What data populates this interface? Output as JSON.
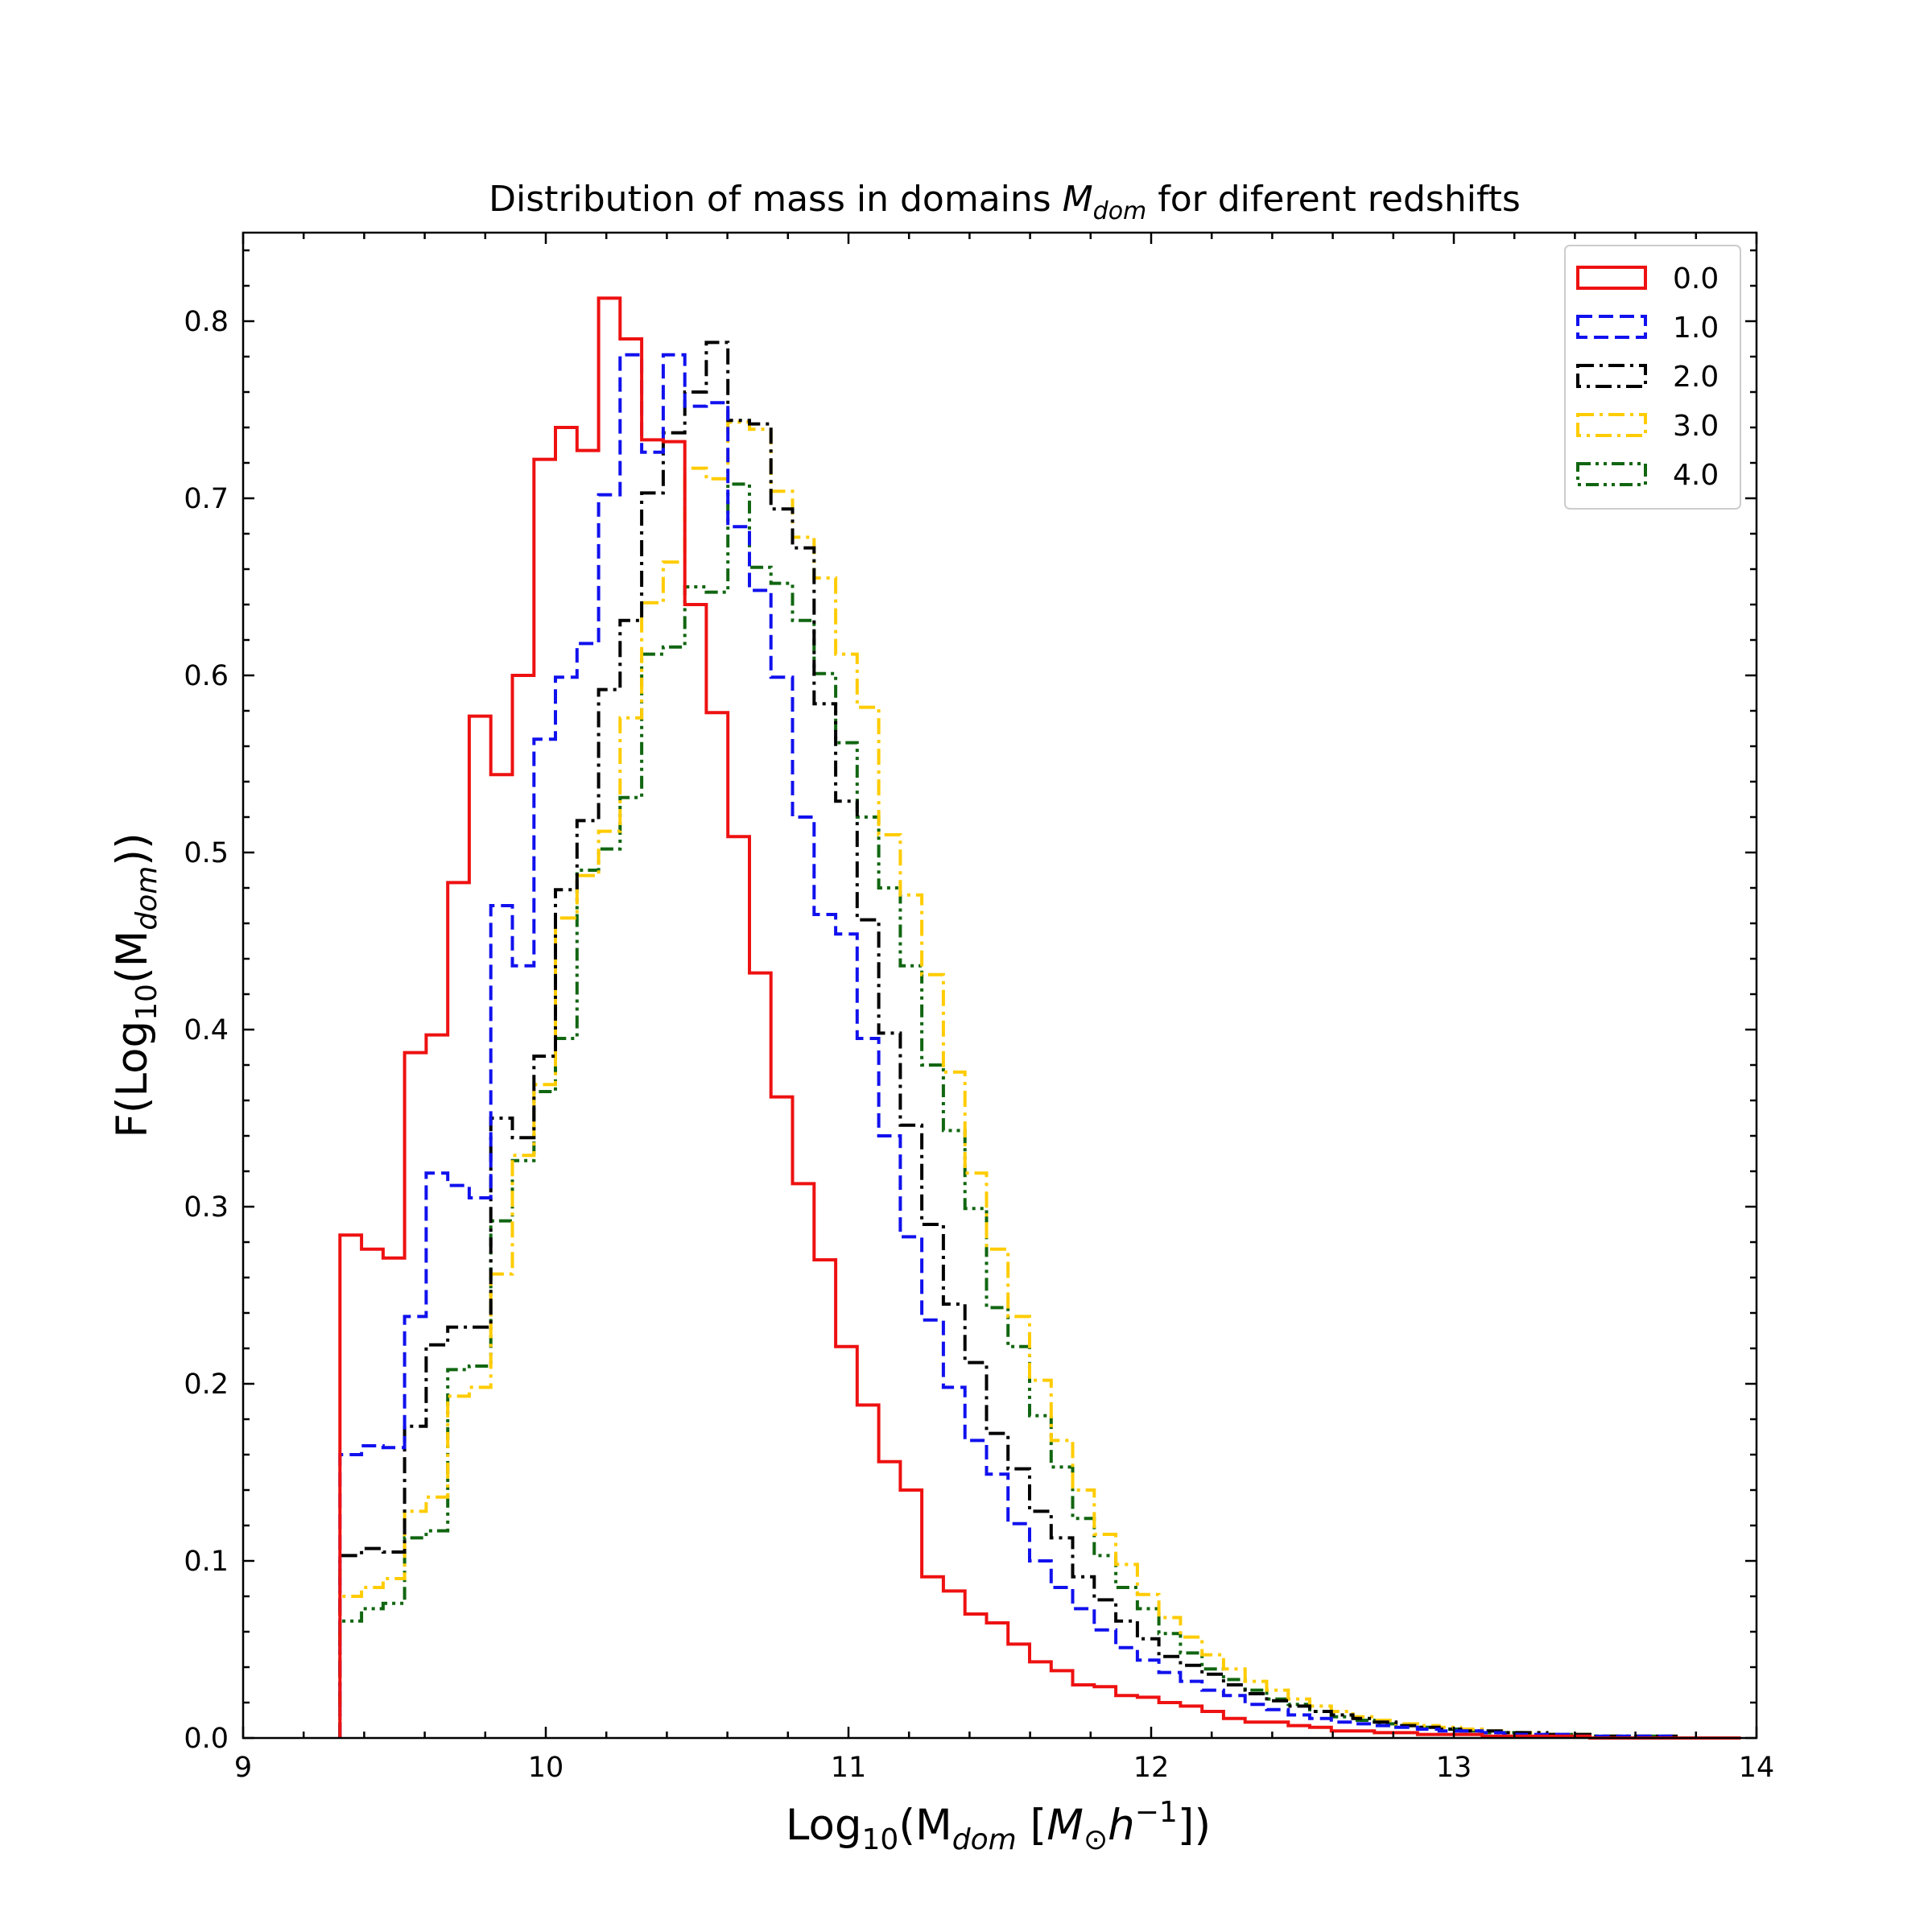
{
  "chart_data": {
    "type": "line",
    "drawstyle": "steps",
    "title_main": "Distribution of mass in domains ",
    "title_sym": "M",
    "title_sub": "dom",
    "title_tail": " for diferent redshifts",
    "xlabel_parts": [
      "Log",
      "10",
      "(M",
      "dom",
      " [",
      "M",
      "⊙",
      "h",
      "−1",
      "])"
    ],
    "ylabel_parts": [
      "F(Log",
      "10",
      "(M",
      "dom",
      "))"
    ],
    "xlim": [
      9,
      14
    ],
    "ylim": [
      0,
      0.85
    ],
    "xticks": [
      9,
      10,
      11,
      12,
      13,
      14
    ],
    "xtick_labels": [
      "9",
      "10",
      "11",
      "12",
      "13",
      "14"
    ],
    "yticks": [
      0.0,
      0.1,
      0.2,
      0.3,
      0.4,
      0.5,
      0.6,
      0.7,
      0.8
    ],
    "ytick_labels": [
      "0.0",
      "0.1",
      "0.2",
      "0.3",
      "0.4",
      "0.5",
      "0.6",
      "0.7",
      "0.8"
    ],
    "grid": false,
    "legend_position": "top-right",
    "bin_start": 9.32,
    "bin_width": 0.0712,
    "series": [
      {
        "name": "0.0",
        "color": "#ee1111",
        "dash": "solid",
        "values": [
          0.284,
          0.276,
          0.271,
          0.387,
          0.397,
          0.483,
          0.577,
          0.544,
          0.6,
          0.722,
          0.74,
          0.727,
          0.813,
          0.79,
          0.733,
          0.732,
          0.64,
          0.579,
          0.509,
          0.432,
          0.362,
          0.313,
          0.27,
          0.221,
          0.188,
          0.156,
          0.14,
          0.091,
          0.083,
          0.07,
          0.065,
          0.053,
          0.043,
          0.038,
          0.03,
          0.029,
          0.024,
          0.023,
          0.02,
          0.018,
          0.015,
          0.011,
          0.009,
          0.009,
          0.007,
          0.006,
          0.004,
          0.004,
          0.003,
          0.003,
          0.002,
          0.002,
          0.002,
          0.001,
          0.001,
          0.001,
          0.001,
          0.001,
          0.0,
          0.0,
          0.0,
          0.0,
          0.0,
          0.0,
          0.0
        ]
      },
      {
        "name": "1.0",
        "color": "#1111ee",
        "dash": "dashed",
        "values": [
          0.16,
          0.165,
          0.164,
          0.238,
          0.319,
          0.312,
          0.305,
          0.47,
          0.436,
          0.564,
          0.599,
          0.618,
          0.702,
          0.781,
          0.726,
          0.781,
          0.752,
          0.754,
          0.684,
          0.648,
          0.599,
          0.52,
          0.465,
          0.454,
          0.395,
          0.34,
          0.283,
          0.236,
          0.198,
          0.168,
          0.149,
          0.121,
          0.1,
          0.085,
          0.073,
          0.061,
          0.051,
          0.044,
          0.037,
          0.032,
          0.027,
          0.024,
          0.019,
          0.016,
          0.013,
          0.011,
          0.009,
          0.008,
          0.007,
          0.006,
          0.005,
          0.004,
          0.004,
          0.003,
          0.002,
          0.002,
          0.002,
          0.001,
          0.001,
          0.001,
          0.001,
          0.001,
          0.0,
          0.0,
          0.0
        ]
      },
      {
        "name": "2.0",
        "color": "#000000",
        "dash": "dashdot",
        "values": [
          0.103,
          0.107,
          0.105,
          0.176,
          0.222,
          0.232,
          0.232,
          0.35,
          0.339,
          0.385,
          0.479,
          0.518,
          0.592,
          0.631,
          0.703,
          0.737,
          0.76,
          0.788,
          0.744,
          0.742,
          0.694,
          0.672,
          0.584,
          0.529,
          0.462,
          0.398,
          0.346,
          0.29,
          0.245,
          0.212,
          0.172,
          0.152,
          0.128,
          0.113,
          0.091,
          0.078,
          0.066,
          0.056,
          0.046,
          0.041,
          0.036,
          0.03,
          0.025,
          0.021,
          0.018,
          0.015,
          0.013,
          0.011,
          0.009,
          0.007,
          0.006,
          0.005,
          0.004,
          0.004,
          0.003,
          0.003,
          0.002,
          0.002,
          0.001,
          0.001,
          0.001,
          0.001,
          0.0,
          0.0,
          0.0
        ]
      },
      {
        "name": "3.0",
        "color": "#ffcc00",
        "dash": "dashdot",
        "values": [
          0.08,
          0.085,
          0.09,
          0.128,
          0.136,
          0.193,
          0.198,
          0.262,
          0.329,
          0.369,
          0.463,
          0.487,
          0.512,
          0.576,
          0.641,
          0.664,
          0.717,
          0.711,
          0.743,
          0.739,
          0.704,
          0.678,
          0.655,
          0.612,
          0.582,
          0.51,
          0.476,
          0.431,
          0.376,
          0.319,
          0.276,
          0.238,
          0.202,
          0.168,
          0.14,
          0.115,
          0.098,
          0.081,
          0.068,
          0.057,
          0.047,
          0.039,
          0.032,
          0.027,
          0.022,
          0.018,
          0.015,
          0.012,
          0.01,
          0.008,
          0.007,
          0.006,
          0.005,
          0.004,
          0.003,
          0.003,
          0.002,
          0.002,
          0.001,
          0.001,
          0.001,
          0.001,
          0.0,
          0.0,
          0.0
        ]
      },
      {
        "name": "4.0",
        "color": "#116611",
        "dash": "dashdotdot",
        "values": [
          0.066,
          0.073,
          0.076,
          0.113,
          0.117,
          0.208,
          0.21,
          0.292,
          0.326,
          0.365,
          0.395,
          0.49,
          0.502,
          0.531,
          0.612,
          0.616,
          0.65,
          0.647,
          0.708,
          0.661,
          0.652,
          0.631,
          0.601,
          0.562,
          0.52,
          0.48,
          0.436,
          0.38,
          0.343,
          0.299,
          0.243,
          0.221,
          0.182,
          0.153,
          0.124,
          0.103,
          0.085,
          0.073,
          0.059,
          0.048,
          0.039,
          0.033,
          0.027,
          0.022,
          0.019,
          0.015,
          0.012,
          0.01,
          0.008,
          0.007,
          0.006,
          0.005,
          0.004,
          0.003,
          0.003,
          0.002,
          0.002,
          0.002,
          0.001,
          0.001,
          0.001,
          0.001,
          0.0,
          0.0,
          0.0
        ]
      }
    ]
  }
}
